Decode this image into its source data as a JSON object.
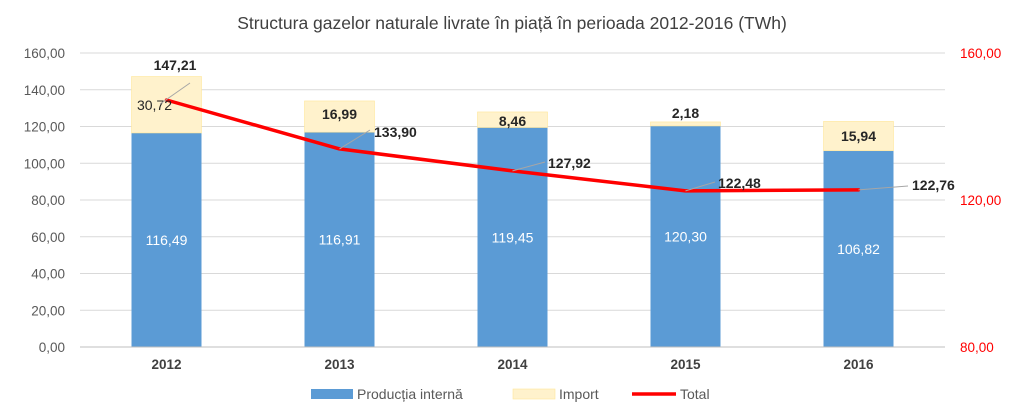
{
  "chart_data": {
    "type": "bar",
    "stacked": true,
    "title": "Structura gazelor naturale livrate în piață în perioada 2012-2016 (TWh)",
    "categories": [
      "2012",
      "2013",
      "2014",
      "2015",
      "2016"
    ],
    "series": [
      {
        "name": "Producția internă",
        "type": "bar",
        "values": [
          116.49,
          116.91,
          119.45,
          120.3,
          106.82
        ],
        "labels": [
          "116,49",
          "116,91",
          "119,45",
          "120,30",
          "106,82"
        ],
        "color": "#5b9bd5"
      },
      {
        "name": "Import",
        "type": "bar",
        "values": [
          30.72,
          16.99,
          8.46,
          2.18,
          15.94
        ],
        "labels": [
          "30,72",
          "16,99",
          "8,46",
          "2,18",
          "15,94"
        ],
        "color": "#fff2cc"
      },
      {
        "name": "Total",
        "type": "line",
        "axis": "secondary",
        "values": [
          147.21,
          133.9,
          127.92,
          122.48,
          122.76
        ],
        "labels": [
          "147,21",
          "133,90",
          "127,92",
          "122,48",
          "122,76"
        ],
        "color": "#ff0000"
      }
    ],
    "ylim": [
      0,
      160
    ],
    "yticks": [
      "0,00",
      "20,00",
      "40,00",
      "60,00",
      "80,00",
      "100,00",
      "120,00",
      "140,00",
      "160,00"
    ],
    "y2lim": [
      80,
      160
    ],
    "y2ticks": [
      "80,00",
      "120,00",
      "160,00"
    ],
    "grid": true,
    "legend_position": "bottom",
    "xlabel": "",
    "ylabel": ""
  }
}
